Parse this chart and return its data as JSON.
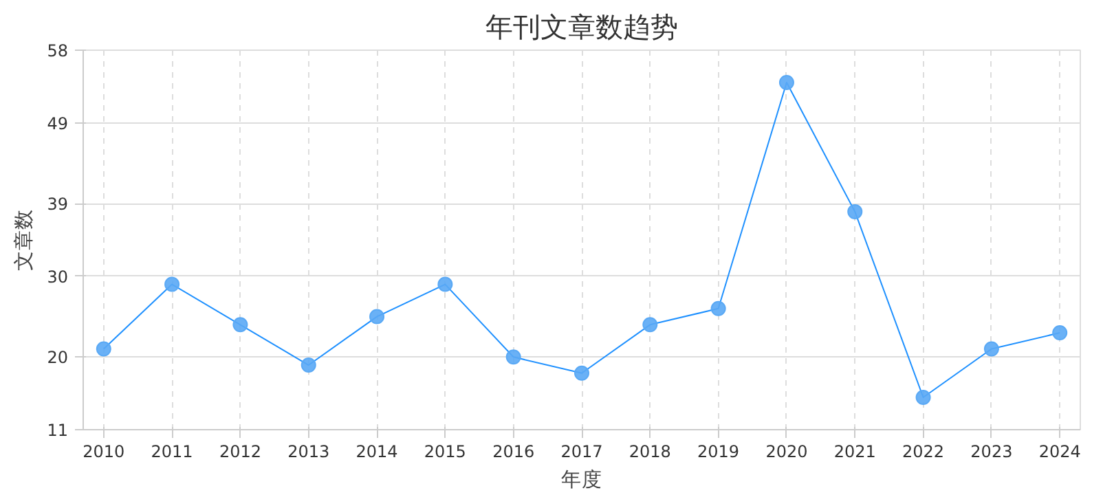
{
  "chart_data": {
    "type": "line",
    "title": "年刊文章数趋势",
    "xlabel": "年度",
    "ylabel": "文章数",
    "categories": [
      "2010",
      "2011",
      "2012",
      "2013",
      "2014",
      "2015",
      "2016",
      "2017",
      "2018",
      "2019",
      "2020",
      "2021",
      "2022",
      "2023",
      "2024"
    ],
    "series": [
      {
        "color": "#1e90ff",
        "values": [
          21,
          29,
          24,
          19,
          25,
          29,
          20,
          18,
          24,
          26,
          54,
          38,
          15,
          21,
          23
        ]
      }
    ],
    "ylim": [
      11,
      58
    ],
    "yticks": [
      11,
      20,
      30,
      39,
      49,
      58
    ],
    "grid": true,
    "marker": "circle",
    "line_style": "solid"
  }
}
